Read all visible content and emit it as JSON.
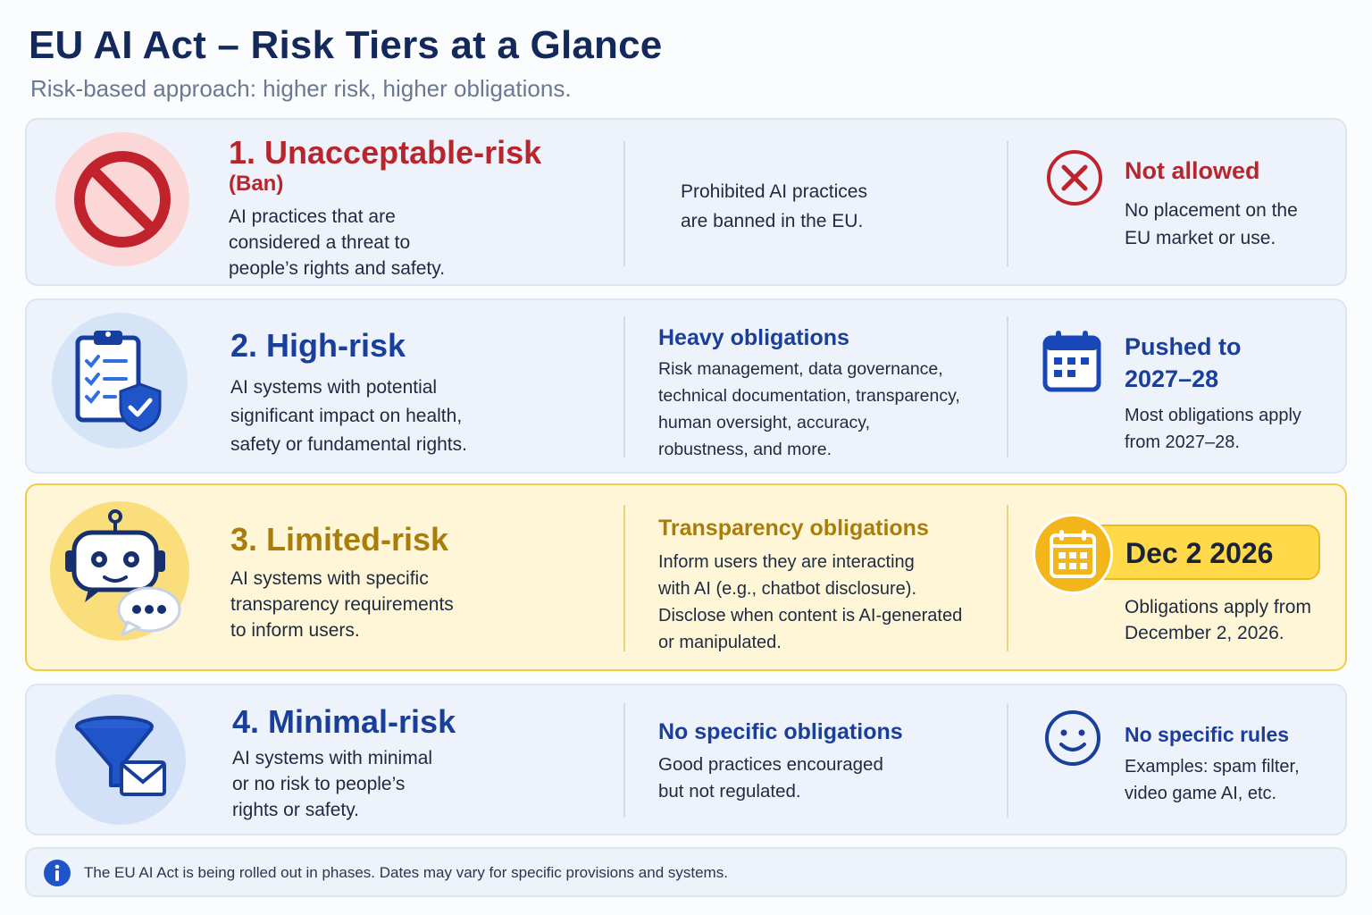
{
  "header": {
    "title": "EU AI Act – Risk Tiers at a Glance",
    "subtitle": "Risk-based approach: higher risk, higher obligations."
  },
  "colors": {
    "unacceptable": "#b8252d",
    "high": "#1a3f9a",
    "limited": "#a97d0a",
    "minimal": "#1a3f9a",
    "limited_highlight": "#ffd94a"
  },
  "tiers": [
    {
      "title": "1. Unacceptable-risk",
      "subtitle": "(Ban)",
      "description": [
        "AI practices that are",
        "considered a threat to",
        "people’s rights and safety."
      ],
      "icon": "prohibited-icon",
      "mid_text": [
        "Prohibited AI practices",
        "are banned in the EU."
      ],
      "right_icon": "x-circle-icon",
      "right_heading": "Not allowed",
      "right_text": [
        "No placement on the",
        "EU market or use."
      ]
    },
    {
      "title": "2. High-risk",
      "description": [
        "AI systems with potential",
        "significant impact on health,",
        "safety or fundamental rights."
      ],
      "icon": "clipboard-shield-icon",
      "mid_heading": "Heavy obligations",
      "mid_text": [
        "Risk management, data governance,",
        "technical documentation, transparency,",
        "human oversight, accuracy,",
        "robustness, and more."
      ],
      "right_icon": "calendar-icon",
      "right_heading": [
        "Pushed to",
        "2027–28"
      ],
      "right_text": [
        "Most obligations apply",
        "from 2027–28."
      ]
    },
    {
      "title": "3. Limited-risk",
      "description": [
        "AI systems with specific",
        "transparency requirements",
        "to inform users."
      ],
      "icon": "chatbot-icon",
      "mid_heading": "Transparency obligations",
      "mid_text": [
        "Inform users they are interacting",
        "with AI (e.g., chatbot disclosure).",
        "Disclose when content is AI-generated",
        "or manipulated."
      ],
      "right_icon": "calendar-icon",
      "date": "Dec 2 2026",
      "right_text": [
        "Obligations apply from",
        "December 2, 2026."
      ]
    },
    {
      "title": "4. Minimal-risk",
      "description": [
        "AI systems with minimal",
        "or no risk to people’s",
        "rights or safety."
      ],
      "icon": "funnel-envelope-icon",
      "mid_heading": "No specific obligations",
      "mid_text": [
        "Good practices encouraged",
        "but not regulated."
      ],
      "right_icon": "smiley-icon",
      "right_heading": "No specific rules",
      "right_text": [
        "Examples: spam filter,",
        "video game AI, etc."
      ]
    }
  ],
  "footer": {
    "icon": "info-icon",
    "text": "The EU AI Act is being rolled out in phases. Dates may vary for specific provisions and systems."
  }
}
